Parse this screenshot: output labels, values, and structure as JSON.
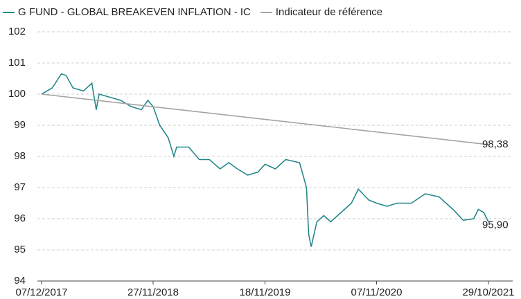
{
  "chart_data": {
    "type": "line",
    "xticks": [
      "07/12/2017",
      "27/11/2018",
      "18/11/2019",
      "07/11/2020",
      "29/10/2021"
    ],
    "xlim": [
      "07/12/2017",
      "29/10/2021"
    ],
    "ylim": [
      94,
      102
    ],
    "yticks": [
      94,
      95,
      96,
      97,
      98,
      99,
      100,
      101,
      102
    ],
    "grid": true,
    "legend": "top",
    "series": [
      {
        "name": "G FUND - GLOBAL BREAKEVEN INFLATION - IC",
        "color": "#23888a",
        "x": [
          "07/12/2017",
          "10/01/2018",
          "08/02/2018",
          "23/02/2018",
          "17/03/2018",
          "19/04/2018",
          "16/05/2018",
          "30/05/2018",
          "08/06/2018",
          "16/08/2018",
          "18/09/2018",
          "21/10/2018",
          "10/11/2018",
          "27/11/2018",
          "18/12/2018",
          "14/01/2019",
          "01/02/2019",
          "10/02/2019",
          "20/03/2019",
          "23/04/2019",
          "25/05/2019",
          "28/06/2019",
          "26/07/2019",
          "22/08/2019",
          "24/09/2019",
          "27/10/2019",
          "18/11/2019",
          "21/12/2019",
          "23/01/2020",
          "07/03/2020",
          "29/03/2020",
          "05/04/2020",
          "13/04/2020",
          "01/05/2020",
          "23/05/2020",
          "14/06/2020",
          "17/07/2020",
          "19/08/2020",
          "10/09/2020",
          "13/10/2020",
          "07/11/2020",
          "10/12/2020",
          "12/01/2021",
          "26/02/2021",
          "11/04/2021",
          "25/05/2021",
          "08/07/2021",
          "10/08/2021",
          "12/09/2021",
          "27/09/2021",
          "14/10/2021",
          "29/10/2021"
        ],
        "values": [
          100.0,
          100.2,
          100.65,
          100.6,
          100.2,
          100.1,
          100.35,
          99.5,
          100.0,
          99.8,
          99.6,
          99.5,
          99.8,
          99.6,
          99.0,
          98.6,
          98.0,
          98.3,
          98.3,
          97.9,
          97.9,
          97.6,
          97.8,
          97.6,
          97.4,
          97.5,
          97.75,
          97.6,
          97.9,
          97.8,
          97.0,
          95.5,
          95.1,
          95.9,
          96.1,
          95.9,
          96.2,
          96.5,
          96.95,
          96.6,
          96.5,
          96.4,
          96.5,
          96.5,
          96.8,
          96.7,
          96.3,
          95.95,
          96.0,
          96.3,
          96.2,
          95.9
        ],
        "value_labels": [
          null,
          null,
          null,
          null,
          null,
          null,
          null,
          null,
          null,
          null,
          null,
          null,
          null,
          null,
          null,
          null,
          null,
          null,
          null,
          null,
          null,
          null,
          null,
          null,
          null,
          null,
          null,
          null,
          null,
          null,
          null,
          null,
          null,
          null,
          null,
          null,
          null,
          null,
          null,
          null,
          null,
          null,
          null,
          null,
          null,
          null,
          null,
          null,
          null,
          null,
          null,
          "95,90"
        ]
      },
      {
        "name": "Indicateur de référence",
        "color": "#a3a3a3",
        "x": [
          "07/12/2017",
          "29/10/2021"
        ],
        "values": [
          100.0,
          98.38
        ],
        "value_labels": [
          null,
          "98,38"
        ]
      }
    ]
  }
}
